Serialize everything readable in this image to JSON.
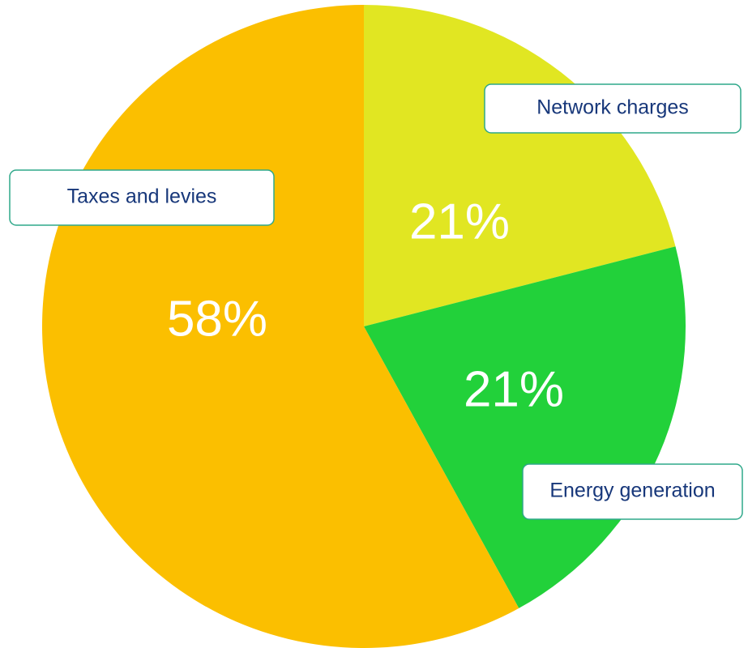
{
  "chart_data": {
    "type": "pie",
    "categories": [
      "Network charges",
      "Taxes and levies",
      "Energy generation"
    ],
    "values": [
      21,
      21,
      58
    ],
    "value_labels": [
      "21%",
      "21%",
      "58%"
    ],
    "colors": [
      "#e1e622",
      "#22d13a",
      "#fbbf00"
    ]
  }
}
